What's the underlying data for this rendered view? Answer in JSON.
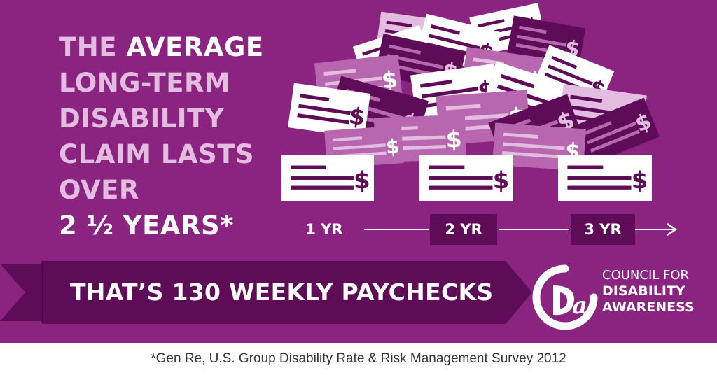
{
  "headline": {
    "line1_pre": "THE ",
    "line1_em": "AVERAGE",
    "line2": "LONG-TERM",
    "line3": "DISABILITY",
    "line4": "CLAIM LASTS",
    "line5": "OVER",
    "line6": "2 ½ YEARS*"
  },
  "check_symbol": "$",
  "timeline": {
    "labels": [
      "1 YR",
      "2 YR",
      "3 YR"
    ],
    "arrow": "right-arrow-icon"
  },
  "banner": {
    "text": "THAT’S 130 WEEKLY PAYCHECKS"
  },
  "logo": {
    "mark": "cda-logo-icon",
    "line1": "COUNCIL FOR",
    "line2": "DISABILITY",
    "line3": "AWARENESS"
  },
  "footnote": "*Gen Re, U.S. Group Disability Rate & Risk Management Survey 2012",
  "colors": {
    "background": "#8b2381",
    "dark": "#5e0c57",
    "light": "#e3bde0",
    "mid_check": "#b866af",
    "white": "#ffffff"
  }
}
